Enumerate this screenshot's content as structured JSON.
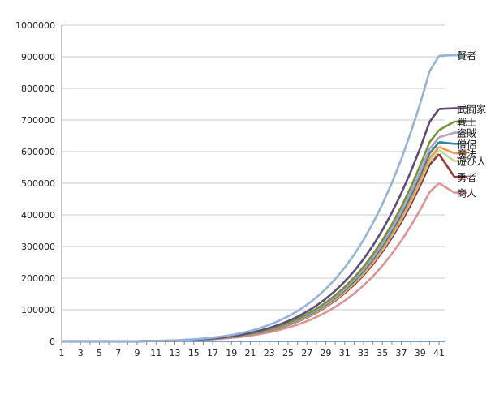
{
  "chart_data": {
    "type": "line",
    "title": "",
    "xlabel": "",
    "ylabel": "",
    "ylim": [
      0,
      1000000
    ],
    "yticks": [
      0,
      100000,
      200000,
      300000,
      400000,
      500000,
      600000,
      700000,
      800000,
      900000,
      1000000
    ],
    "xticks": [
      1,
      3,
      5,
      7,
      9,
      11,
      13,
      15,
      17,
      19,
      21,
      23,
      25,
      27,
      29,
      31,
      33,
      35,
      37,
      39,
      41
    ],
    "grid": {
      "horizontal": true,
      "vertical": false
    },
    "legend": "right",
    "series": [
      {
        "name": "賢者",
        "color": "#95b3d7",
        "end": [
          [
            41,
            903000
          ],
          [
            43,
            905000
          ]
        ],
        "values": [
          0,
          60,
          180,
          370,
          650,
          1050,
          1600,
          2400,
          3400,
          4800,
          6600,
          8900,
          11900,
          15600,
          20300,
          26100,
          33200,
          41800,
          52200,
          64500,
          79000,
          96000,
          116000,
          139000,
          166000,
          197000,
          233000,
          274000,
          321000,
          374000,
          434000,
          501000,
          576000,
          660000,
          752000,
          854000,
          903000
        ]
      },
      {
        "name": "武闘家",
        "color": "#604a7b",
        "end": [
          [
            41,
            735000
          ],
          [
            43,
            737000
          ]
        ],
        "values": [
          0,
          50,
          150,
          300,
          530,
          850,
          1300,
          1950,
          2750,
          3900,
          5300,
          7200,
          9600,
          12600,
          16400,
          21100,
          26900,
          33900,
          42300,
          52300,
          64000,
          77800,
          94000,
          113000,
          135000,
          160000,
          189000,
          222000,
          260000,
          303000,
          352000,
          407000,
          468000,
          536000,
          611000,
          694000,
          735000
        ]
      },
      {
        "name": "戦士",
        "color": "#77933c",
        "end": [
          [
            41,
            668000
          ],
          [
            43,
            695000
          ]
        ],
        "values": [
          0,
          45,
          135,
          275,
          480,
          770,
          1180,
          1770,
          2500,
          3550,
          4800,
          6550,
          8700,
          11450,
          14900,
          19200,
          24500,
          30800,
          38400,
          47500,
          58200,
          70700,
          85400,
          102700,
          122700,
          145600,
          172000,
          202000,
          236000,
          275000,
          320000,
          370000,
          425000,
          487000,
          556000,
          630000,
          668000
        ]
      },
      {
        "name": "盗賊",
        "color": "#b3a2c7",
        "end": [
          [
            41,
            645000
          ],
          [
            43,
            660000
          ]
        ],
        "values": [
          0,
          44,
          130,
          265,
          465,
          745,
          1140,
          1710,
          2420,
          3430,
          4640,
          6330,
          8400,
          11070,
          14400,
          18550,
          23680,
          29760,
          37100,
          45900,
          56200,
          68300,
          82500,
          99200,
          118500,
          140600,
          166100,
          195100,
          228000,
          265600,
          309000,
          357300,
          410500,
          470300,
          537000,
          608500,
          645000
        ]
      },
      {
        "name": "僧侶",
        "color": "#31859c",
        "end": [
          [
            41,
            630000
          ],
          [
            43,
            625000
          ]
        ],
        "values": [
          0,
          43,
          127,
          259,
          454,
          728,
          1114,
          1670,
          2365,
          3350,
          4530,
          6180,
          8200,
          10810,
          14060,
          18120,
          23130,
          29070,
          36240,
          44830,
          54900,
          66710,
          80580,
          96890,
          115740,
          137330,
          162240,
          190560,
          222700,
          259430,
          301820,
          348990,
          400960,
          459370,
          524510,
          594360,
          630000
        ]
      },
      {
        "name": "魔法",
        "color": "#f79646",
        "end": [
          [
            41,
            615000
          ],
          [
            43,
            595000
          ]
        ],
        "values": [
          0,
          42,
          124,
          253,
          443,
          711,
          1087,
          1630,
          2309,
          3270,
          4420,
          6030,
          8000,
          10550,
          13720,
          17680,
          22570,
          28370,
          35370,
          43750,
          53580,
          65110,
          78640,
          94560,
          112960,
          134030,
          158330,
          185970,
          217340,
          253200,
          294570,
          340600,
          391320,
          448330,
          511900,
          580070,
          615000
        ]
      },
      {
        "name": "遊び人",
        "color": "#c3d69b",
        "end": [
          [
            41,
            605000
          ],
          [
            43,
            570000
          ]
        ],
        "values": [
          0,
          41,
          122,
          249,
          436,
          700,
          1070,
          1604,
          2272,
          3217,
          4350,
          5934,
          7872,
          10380,
          13500,
          17400,
          22210,
          27910,
          34800,
          43050,
          52720,
          64070,
          77380,
          93050,
          111150,
          131890,
          155800,
          183000,
          213880,
          249150,
          289860,
          335160,
          385070,
          441160,
          503720,
          570810,
          605000
        ]
      },
      {
        "name": "勇者",
        "color": "#953735",
        "end": [
          [
            41,
            592000
          ],
          [
            43,
            520000
          ]
        ],
        "values": [
          0,
          40,
          119,
          243,
          426,
          685,
          1047,
          1569,
          2223,
          3148,
          4257,
          5807,
          7703,
          10157,
          13210,
          17025,
          21733,
          27311,
          34053,
          42126,
          51589,
          62694,
          75718,
          91050,
          108763,
          129057,
          152453,
          179067,
          209283,
          243800,
          283630,
          327960,
          376800,
          431680,
          492890,
          558540,
          592000
        ]
      },
      {
        "name": "商人",
        "color": "#d99694",
        "end": [
          [
            41,
            500000
          ],
          [
            43,
            470000
          ]
        ],
        "values": [
          0,
          34,
          100,
          205,
          360,
          578,
          884,
          1325,
          1877,
          2659,
          3595,
          4904,
          6506,
          8578,
          11157,
          14378,
          18355,
          23065,
          28760,
          35577,
          43570,
          52948,
          63948,
          76896,
          91855,
          108995,
          128754,
          151231,
          176750,
          205900,
          239540,
          276980,
          318230,
          364580,
          416270,
          471720,
          500000
        ]
      }
    ]
  }
}
